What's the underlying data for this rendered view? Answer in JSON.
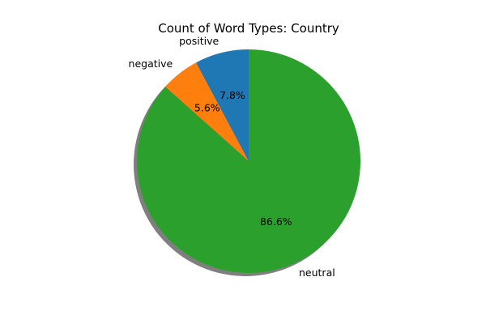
{
  "chart_data": {
    "type": "pie",
    "title": "Count of Word Types: Country",
    "start_angle_deg": 90,
    "direction": "counterclockwise",
    "shadow": true,
    "slices": [
      {
        "label": "positive",
        "value": 7.8,
        "pct_label": "7.8%",
        "color": "#1f77b4"
      },
      {
        "label": "negative",
        "value": 5.6,
        "pct_label": "5.6%",
        "color": "#ff7f0e"
      },
      {
        "label": "neutral",
        "value": 86.6,
        "pct_label": "86.6%",
        "color": "#2ca02c"
      }
    ],
    "shadow_color": "#7f7f7f"
  }
}
